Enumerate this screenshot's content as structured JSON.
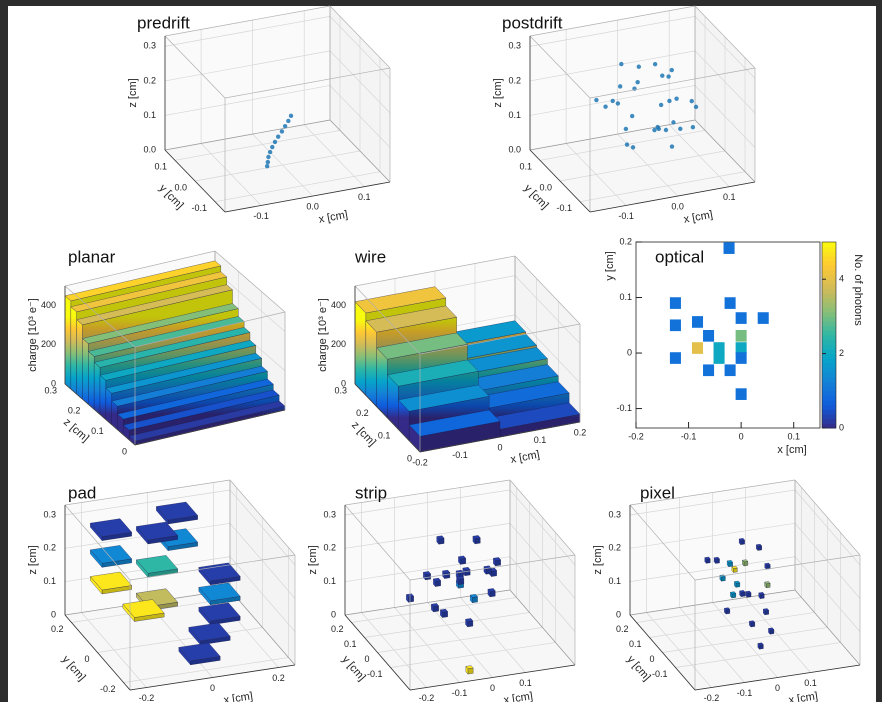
{
  "chart_data": [
    {
      "type": "scatter3d",
      "title": "predrift",
      "xlabel": "x [cm]",
      "ylabel": "y [cm]",
      "zlabel": "z [cm]",
      "color": "#1f77b4",
      "xlim": [
        -0.17,
        0.15
      ],
      "ylim": [
        -0.15,
        0.15
      ],
      "zlim": [
        0,
        0.33
      ],
      "xticks": [
        -0.1,
        {
          "value": 0,
          "label": "0.0"
        },
        0.1
      ],
      "yticks": [
        -0.1,
        {
          "value": 0,
          "label": "0.0"
        },
        0.1
      ],
      "zticks": [
        {
          "value": 0,
          "label": "0.0"
        },
        0.1,
        0.2,
        0.3
      ],
      "x": [
        -0.03,
        -0.028,
        -0.026,
        -0.022,
        -0.017,
        -0.011,
        -0.004,
        0.004,
        0.011,
        0.018,
        0.024
      ],
      "y": [
        0.0,
        0.002,
        0.004,
        0.006,
        0.008,
        0.01,
        0.012,
        0.014,
        0.016,
        0.018,
        0.02
      ],
      "z": [
        0.005,
        0.015,
        0.028,
        0.04,
        0.052,
        0.064,
        0.076,
        0.088,
        0.1,
        0.112,
        0.124
      ]
    },
    {
      "type": "scatter3d",
      "title": "postdrift",
      "xlabel": "x [cm]",
      "ylabel": "y [cm]",
      "zlabel": "z [cm]",
      "color": "#1f77b4",
      "xlim": [
        -0.17,
        0.15
      ],
      "ylim": [
        -0.15,
        0.15
      ],
      "zlim": [
        0,
        0.33
      ],
      "xticks": [
        -0.1,
        {
          "value": 0,
          "label": "0.0"
        },
        0.1
      ],
      "yticks": [
        -0.1,
        {
          "value": 0,
          "label": "0.0"
        },
        0.1
      ],
      "zticks": [
        {
          "value": 0,
          "label": "0.0"
        },
        0.1,
        0.2,
        0.3
      ],
      "x": [
        -0.05,
        0.02,
        0.06,
        -0.03,
        0.01,
        0.08,
        -0.07,
        0.04,
        -0.01,
        0.03,
        -0.04,
        0.07,
        0.0,
        -0.06,
        0.05,
        -0.02,
        0.09,
        -0.08,
        0.02,
        0.04,
        -0.05,
        0.06,
        -0.03,
        0.01,
        0.03,
        -0.01,
        0.05,
        -0.04,
        0.07,
        0.0
      ],
      "y": [
        0.02,
        -0.04,
        0.05,
        0.0,
        0.07,
        -0.02,
        0.03,
        -0.06,
        0.04,
        0.01,
        -0.03,
        0.06,
        -0.05,
        0.02,
        0.0,
        0.08,
        -0.01,
        0.05,
        -0.07,
        0.03,
        -0.02,
        0.01,
        0.06,
        -0.03,
        0.04,
        -0.06,
        0.02,
        0.0,
        -0.04,
        0.05
      ],
      "z": [
        0.18,
        0.12,
        0.21,
        0.15,
        0.24,
        0.1,
        0.17,
        0.13,
        0.2,
        0.16,
        0.08,
        0.22,
        0.14,
        0.19,
        0.11,
        0.25,
        0.15,
        0.18,
        0.09,
        0.23,
        0.13,
        0.17,
        0.2,
        0.12,
        0.26,
        0.14,
        0.16,
        0.07,
        0.19,
        0.21
      ]
    },
    {
      "type": "bar3d",
      "title": "planar",
      "ylabel": "z [cm]",
      "zlabel": "charge [10³ e⁻]",
      "xlim": [
        -0.2,
        0.2
      ],
      "ylim": [
        0,
        0.3
      ],
      "zlim": [
        0,
        500
      ],
      "yticks": [
        0,
        0.1,
        0.2,
        0.3
      ],
      "zticks": [
        0,
        200,
        400
      ],
      "y": [
        0.275,
        0.25,
        0.225,
        0.2,
        0.175,
        0.15,
        0.125,
        0.1,
        0.075,
        0.05,
        0.025,
        0.0
      ],
      "values": [
        450,
        420,
        380,
        310,
        270,
        240,
        200,
        160,
        120,
        80,
        50,
        20
      ]
    },
    {
      "type": "bar3d",
      "title": "wire",
      "xlabel": "x [cm]",
      "ylabel": "z [cm]",
      "zlabel": "charge [10³ e⁻]",
      "xlim": [
        -0.2,
        0.2
      ],
      "ylim": [
        0,
        0.3
      ],
      "zlim": [
        0,
        500
      ],
      "xticks": [
        -0.2,
        -0.1,
        0,
        0.1,
        0.2
      ],
      "yticks": [
        0,
        0.1,
        0.2,
        0.3
      ],
      "zticks": [
        0,
        200,
        400
      ],
      "x": [
        0.1,
        -0.1,
        0.1,
        -0.1,
        0.1,
        -0.1,
        0.1,
        -0.1,
        0.1,
        -0.1,
        0.1,
        -0.1
      ],
      "y": [
        0.25,
        0.25,
        0.2,
        0.2,
        0.15,
        0.15,
        0.1,
        0.1,
        0.05,
        0.05,
        0.0,
        0.0
      ],
      "values": [
        170,
        420,
        160,
        380,
        150,
        300,
        120,
        220,
        90,
        150,
        40,
        80
      ]
    },
    {
      "type": "heatmap",
      "title": "optical",
      "xlabel": "x [cm]",
      "ylabel": "y [cm]",
      "colorbar_label": "No. of photons",
      "xlim": [
        -0.2,
        0.15
      ],
      "ylim": [
        -0.135,
        0.2
      ],
      "zlim": [
        0,
        5
      ],
      "xticks": [
        -0.2,
        -0.1,
        0,
        0.1
      ],
      "yticks": [
        -0.1,
        0,
        0.1,
        0.2
      ],
      "zticks": [
        0,
        2,
        4
      ],
      "x": [
        -0.023,
        -0.125,
        -0.021,
        -0.125,
        -0.083,
        0.0,
        0.042,
        -0.062,
        0.0,
        -0.083,
        -0.042,
        0.0,
        -0.125,
        -0.042,
        0.0,
        -0.062,
        -0.021,
        0.0
      ],
      "y": [
        0.189,
        0.09,
        0.09,
        0.05,
        0.056,
        0.063,
        0.063,
        0.031,
        0.031,
        0.009,
        0.009,
        0.009,
        -0.009,
        -0.009,
        -0.009,
        -0.031,
        -0.031,
        -0.074
      ],
      "values": [
        1,
        1,
        1,
        1,
        1,
        1,
        1,
        1,
        3,
        4,
        2,
        2,
        1,
        2,
        1,
        1,
        1,
        1
      ]
    },
    {
      "type": "voxel3d",
      "title": "pad",
      "xlabel": "x [cm]",
      "ylabel": "y [cm]",
      "zlabel": "z [cm]",
      "xlim": [
        -0.25,
        0.25
      ],
      "ylim": [
        -0.25,
        0.25
      ],
      "zlim": [
        0,
        0.33
      ],
      "xticks": [
        -0.2,
        0,
        0.2
      ],
      "yticks": [
        -0.2,
        0,
        0.2
      ],
      "zticks": [
        0,
        0.1,
        0.2,
        0.3
      ],
      "x": [
        0.1,
        0.1,
        0.1,
        0.05,
        0.05,
        -0.05,
        -0.05,
        -0.05,
        -0.15,
        -0.15,
        -0.15,
        -0.15,
        0.05,
        0.0
      ],
      "y": [
        -0.05,
        -0.05,
        -0.05,
        0.15,
        0.15,
        0.05,
        0.05,
        0.05,
        0.15,
        0.15,
        0.15,
        -0.1,
        -0.1,
        -0.15
      ],
      "z": [
        0.08,
        0.14,
        0.2,
        0.22,
        0.3,
        0.1,
        0.2,
        0.3,
        0.12,
        0.2,
        0.28,
        0.15,
        0.05,
        0.02
      ],
      "values": [
        1,
        2,
        1,
        2,
        1,
        4,
        3,
        1,
        5,
        2,
        1,
        5,
        1,
        1
      ]
    },
    {
      "type": "voxel3d",
      "title": "strip",
      "xlabel": "x [cm]",
      "ylabel": "y [cm]",
      "zlabel": "z [cm]",
      "xlim": [
        -0.25,
        0.25
      ],
      "ylim": [
        -0.25,
        0.25
      ],
      "zlim": [
        0,
        0.33
      ],
      "xticks": [
        -0.2,
        -0.1,
        0,
        0.1
      ],
      "yticks": [
        -0.1,
        0,
        0.1,
        0.2
      ],
      "zticks": [
        0,
        0.1,
        0.2,
        0.3
      ],
      "x": [
        -0.1,
        -0.05,
        0,
        0.05,
        0.1,
        -0.08,
        -0.02,
        0.03,
        0.08,
        -0.06,
        0.0,
        0.06,
        -0.12,
        0.12,
        -0.04,
        0.04,
        -0.03,
        0.02,
        0.07,
        -0.05
      ],
      "y": [
        0.0,
        0.05,
        -0.05,
        0.02,
        0.0,
        -0.08,
        0.1,
        0.06,
        -0.04,
        0.04,
        0.0,
        -0.06,
        0.08,
        0.02,
        -0.1,
        0.1,
        0.03,
        -0.02,
        0.05,
        -0.2
      ],
      "z": [
        0.2,
        0.15,
        0.22,
        0.1,
        0.18,
        0.12,
        0.25,
        0.2,
        0.14,
        0.08,
        0.16,
        0.22,
        0.1,
        0.2,
        0.24,
        0.12,
        0.18,
        0.05,
        0.26,
        0.0
      ],
      "values": [
        1,
        1,
        1,
        2,
        1,
        1,
        1,
        1,
        1,
        1,
        2,
        1,
        1,
        1,
        1,
        1,
        1,
        1,
        1,
        5
      ]
    },
    {
      "type": "voxel3d",
      "title": "pixel",
      "xlabel": "x [cm]",
      "ylabel": "y [cm]",
      "zlabel": "z [cm]",
      "xlim": [
        -0.25,
        0.25
      ],
      "ylim": [
        -0.25,
        0.25
      ],
      "zlim": [
        0,
        0.33
      ],
      "xticks": [
        -0.2,
        -0.1,
        0,
        0.1
      ],
      "yticks": [
        -0.1,
        0,
        0.1,
        0.2
      ],
      "zticks": [
        0,
        0.1,
        0.2,
        0.3
      ],
      "x": [
        -0.06,
        -0.02,
        0.02,
        0.05,
        -0.09,
        0.0,
        0.04,
        -0.04,
        0.08,
        -0.01,
        0.03,
        -0.07,
        0.06,
        -0.03,
        0.01,
        0.07,
        -0.05,
        0.0,
        0.04,
        -0.02
      ],
      "y": [
        0.02,
        -0.03,
        0.05,
        0.0,
        0.06,
        0.08,
        -0.06,
        -0.01,
        0.03,
        -0.08,
        0.1,
        -0.04,
        -0.02,
        0.04,
        0.0,
        0.07,
        0.09,
        -0.12,
        -0.1,
        0.01
      ],
      "z": [
        0.18,
        0.15,
        0.2,
        0.12,
        0.22,
        0.17,
        0.1,
        0.14,
        0.19,
        0.08,
        0.24,
        0.11,
        0.16,
        0.21,
        0.13,
        0.23,
        0.2,
        0.03,
        0.06,
        0.16
      ],
      "values": [
        2,
        1,
        3,
        1,
        1,
        4,
        1,
        2,
        1,
        1,
        1,
        1,
        3,
        2,
        1,
        1,
        1,
        1,
        1,
        2
      ]
    }
  ]
}
